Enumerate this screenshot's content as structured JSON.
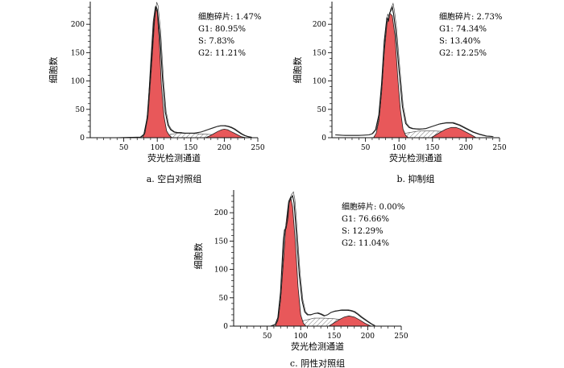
{
  "chart_data": [
    {
      "type": "area",
      "caption": "a. 空白对照组",
      "xlabel": "荧光检测通道",
      "ylabel": "细胞数",
      "xlim": [
        0,
        250
      ],
      "ylim": [
        0,
        240
      ],
      "x_ticks": [
        50,
        100,
        150,
        200,
        250
      ],
      "y_ticks": [
        0,
        50,
        100,
        150,
        200
      ],
      "annotations": [
        "细胞碎片: 1.47%",
        "G1: 80.95%",
        "S: 7.83%",
        "G2: 11.21%"
      ],
      "series": [
        {
          "name": "G1",
          "x": [
            78,
            82,
            86,
            90,
            94,
            97,
            100,
            103,
            106,
            110,
            114,
            118,
            122
          ],
          "values": [
            0,
            10,
            48,
            130,
            205,
            230,
            222,
            170,
            95,
            38,
            12,
            4,
            0
          ]
        },
        {
          "name": "G2",
          "x": [
            172,
            178,
            184,
            190,
            196,
            200,
            205,
            210,
            215,
            220,
            225,
            232
          ],
          "values": [
            0,
            3,
            7,
            11,
            14,
            15,
            14,
            11,
            8,
            5,
            2,
            0
          ]
        },
        {
          "name": "S",
          "x": [
            100,
            115,
            130,
            145,
            160,
            175,
            190,
            205,
            220
          ],
          "values": [
            0,
            5,
            8,
            8,
            7,
            6,
            5,
            3,
            0
          ]
        },
        {
          "name": "Total",
          "x": [
            40,
            75,
            80,
            85,
            90,
            95,
            98,
            100,
            104,
            108,
            112,
            116,
            120,
            125,
            130,
            135,
            140,
            145,
            150,
            155,
            160,
            165,
            170,
            175,
            180,
            185,
            190,
            195,
            200,
            205,
            210,
            215,
            220,
            225,
            230,
            235,
            240
          ],
          "values": [
            0,
            1,
            6,
            35,
            115,
            200,
            232,
            226,
            180,
            100,
            45,
            22,
            14,
            10,
            9,
            9,
            8,
            8,
            8,
            8,
            9,
            10,
            12,
            14,
            16,
            18,
            20,
            21,
            21,
            20,
            18,
            15,
            11,
            7,
            4,
            2,
            1
          ]
        }
      ]
    },
    {
      "type": "area",
      "caption": "b. 抑制组",
      "xlabel": "荧光检测通道",
      "ylabel": "细胞数",
      "xlim": [
        0,
        250
      ],
      "ylim": [
        0,
        240
      ],
      "x_ticks": [
        50,
        100,
        150,
        200,
        250
      ],
      "y_ticks": [
        0,
        50,
        100,
        150,
        200
      ],
      "annotations": [
        "细胞碎片: 2.73%",
        "G1: 74.34%",
        "S: 13.40%",
        "G2: 12.25%"
      ],
      "series": [
        {
          "name": "G1",
          "x": [
            62,
            66,
            70,
            74,
            78,
            82,
            86,
            90,
            94,
            98,
            102,
            106,
            110,
            114
          ],
          "values": [
            0,
            8,
            30,
            80,
            150,
            200,
            220,
            215,
            180,
            110,
            50,
            15,
            4,
            0
          ]
        },
        {
          "name": "G2",
          "x": [
            148,
            155,
            162,
            170,
            178,
            185,
            192,
            200,
            208,
            215
          ],
          "values": [
            0,
            5,
            10,
            15,
            18,
            18,
            15,
            10,
            5,
            0
          ]
        },
        {
          "name": "S",
          "x": [
            90,
            110,
            130,
            150,
            170,
            190,
            210
          ],
          "values": [
            0,
            8,
            12,
            12,
            11,
            8,
            0
          ]
        },
        {
          "name": "Total",
          "x": [
            5,
            20,
            40,
            55,
            60,
            65,
            70,
            74,
            78,
            82,
            84,
            86,
            88,
            90,
            92,
            95,
            100,
            105,
            110,
            115,
            120,
            130,
            140,
            150,
            160,
            170,
            180,
            190,
            200,
            210,
            220,
            230,
            240
          ],
          "values": [
            5,
            4,
            4,
            5,
            7,
            14,
            40,
            95,
            170,
            212,
            205,
            220,
            224,
            230,
            218,
            190,
            120,
            55,
            25,
            18,
            16,
            15,
            16,
            20,
            24,
            26,
            26,
            22,
            16,
            10,
            6,
            3,
            2
          ]
        }
      ]
    },
    {
      "type": "area",
      "caption": "c. 阴性对照组",
      "xlabel": "荧光检测通道",
      "ylabel": "细胞数",
      "xlim": [
        0,
        250
      ],
      "ylim": [
        0,
        240
      ],
      "x_ticks": [
        50,
        100,
        150,
        200,
        250
      ],
      "y_ticks": [
        0,
        50,
        100,
        150,
        200
      ],
      "annotations": [
        "细胞碎片: 0.00%",
        "G1: 76.66%",
        "S: 12.29%",
        "G2: 11.04%"
      ],
      "series": [
        {
          "name": "G1",
          "x": [
            62,
            66,
            70,
            74,
            78,
            82,
            85,
            88,
            92,
            96,
            100,
            104,
            108
          ],
          "values": [
            0,
            10,
            45,
            110,
            180,
            220,
            228,
            210,
            150,
            70,
            20,
            5,
            0
          ]
        },
        {
          "name": "G2",
          "x": [
            142,
            150,
            158,
            165,
            172,
            180,
            188,
            196,
            205
          ],
          "values": [
            0,
            6,
            12,
            16,
            18,
            16,
            11,
            5,
            0
          ]
        },
        {
          "name": "S",
          "x": [
            88,
            105,
            120,
            135,
            150,
            165,
            180,
            195
          ],
          "values": [
            0,
            10,
            14,
            14,
            13,
            11,
            7,
            0
          ]
        },
        {
          "name": "Total",
          "x": [
            55,
            62,
            66,
            70,
            74,
            76,
            78,
            80,
            82,
            85,
            88,
            90,
            92,
            95,
            98,
            102,
            106,
            110,
            115,
            120,
            125,
            130,
            135,
            140,
            145,
            150,
            155,
            160,
            165,
            170,
            175,
            180,
            185,
            190,
            195,
            200,
            205,
            210
          ],
          "values": [
            0,
            3,
            15,
            60,
            150,
            170,
            172,
            185,
            215,
            225,
            230,
            218,
            190,
            140,
            90,
            45,
            25,
            20,
            20,
            22,
            23,
            21,
            18,
            20,
            24,
            26,
            27,
            28,
            28,
            28,
            27,
            25,
            21,
            16,
            12,
            8,
            4,
            1
          ]
        }
      ]
    }
  ]
}
